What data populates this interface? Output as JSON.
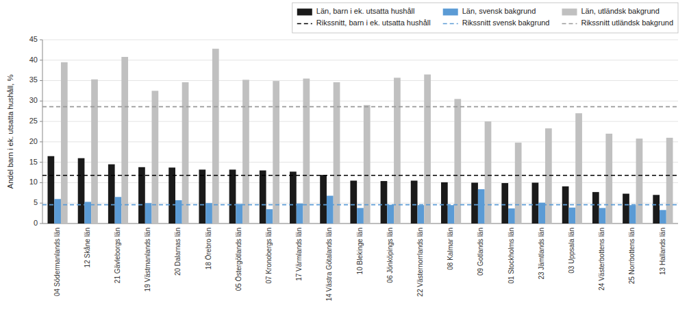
{
  "chart_data": {
    "type": "bar",
    "ylabel": "Andel barn i ek. utsatta hushåll, %",
    "categories": [
      "04 Södermanlands län",
      "12 Skåne län",
      "21 Gävleborgs län",
      "19 Västmanlands län",
      "20 Dalarnas län",
      "18 Örebro län",
      "05 Östergötlands län",
      "07 Kronobergs län",
      "17 Värmlands län",
      "14 Västra Götalands län",
      "10 Blekinge län",
      "06 Jönköpings län",
      "22 Västernorrlands län",
      "08 Kalmar län",
      "09 Gotlands län",
      "01 Stockholms län",
      "23 Jämtlands län",
      "03 Uppsala län",
      "24 Västerbottens län",
      "25 Norrbottens län",
      "13 Hallands län"
    ],
    "series": [
      {
        "name": "Län, barn i ek. utsatta hushåll",
        "color": "#1a1a1a",
        "values": [
          16.5,
          16.0,
          14.5,
          13.8,
          13.7,
          13.2,
          13.2,
          13.0,
          12.7,
          11.9,
          10.5,
          10.4,
          10.5,
          10.1,
          10.0,
          9.9,
          10.0,
          9.1,
          7.7,
          7.3,
          7.0
        ]
      },
      {
        "name": "Län, svensk bakgrund",
        "color": "#5b9bd5",
        "values": [
          6.0,
          5.3,
          6.5,
          5.0,
          5.7,
          5.0,
          4.8,
          3.5,
          4.9,
          6.8,
          3.8,
          4.6,
          4.5,
          4.5,
          8.4,
          3.7,
          5.1,
          3.9,
          3.8,
          4.5,
          3.3
        ]
      },
      {
        "name": "Län, utländsk bakgrund",
        "color": "#c0c0c0",
        "values": [
          39.5,
          35.3,
          40.8,
          32.5,
          34.6,
          42.8,
          35.2,
          34.9,
          35.5,
          34.6,
          29.0,
          35.7,
          36.5,
          30.5,
          25.0,
          19.8,
          23.3,
          27.0,
          22.0,
          20.8,
          21.0
        ]
      },
      {
        "name": "Rikssnitt, barn i ek. utsatta hushåll",
        "type": "hline",
        "line_style": "dashed",
        "color": "#000000",
        "value": 11.8
      },
      {
        "name": "Rikssnitt svensk bakgrund",
        "type": "hline",
        "line_style": "dashed",
        "color": "#5b9bd5",
        "value": 4.6
      },
      {
        "name": "Rikssnitt utländsk bakgrund",
        "type": "hline",
        "line_style": "dashed",
        "color": "#999999",
        "value": 28.6
      }
    ],
    "ylim": [
      0,
      45
    ],
    "yticks": [
      0,
      5,
      10,
      15,
      20,
      25,
      30,
      35,
      40,
      45
    ],
    "grid": true,
    "legend": "upper right"
  }
}
